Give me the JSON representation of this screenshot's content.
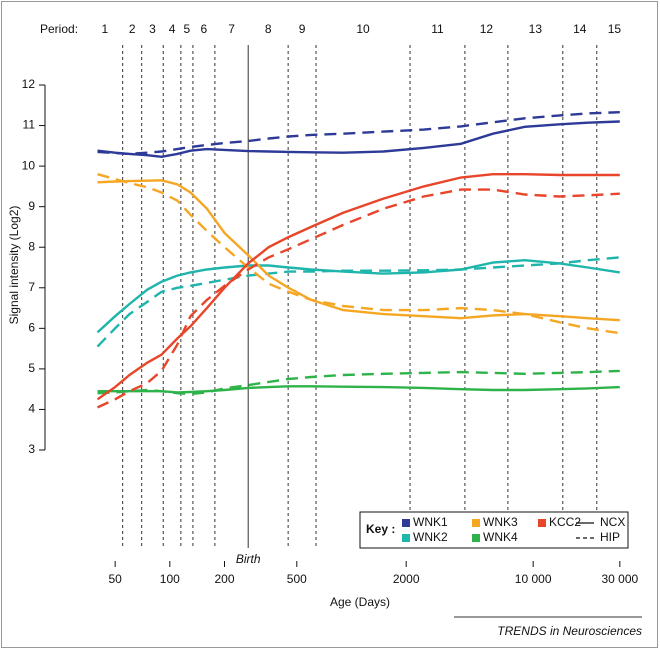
{
  "chart_data": {
    "type": "line",
    "y_label": "Signal intensity (Log2)",
    "x_label": "Age (Days)",
    "period_label": "Period:",
    "periods": [
      1,
      2,
      3,
      4,
      5,
      6,
      7,
      8,
      9,
      10,
      11,
      12,
      13,
      14,
      15
    ],
    "period_boundaries": [
      55,
      70,
      92,
      115,
      134,
      177,
      270,
      448,
      638,
      2100,
      4210,
      7260,
      14560,
      22400
    ],
    "birth": {
      "label": "Birth",
      "age": 270
    },
    "log_x": true,
    "xlim": [
      35,
      35000
    ],
    "xticks": [
      50,
      100,
      200,
      500,
      2000,
      {
        "value": 10000,
        "label": "10 000"
      },
      {
        "value": 30000,
        "label": "30 000"
      }
    ],
    "ylim": [
      3,
      12
    ],
    "yticks": [
      3,
      4,
      5,
      6,
      7,
      8,
      9,
      10,
      11,
      12
    ],
    "legend_title": "Key :",
    "line_styles": [
      {
        "name": "NCX",
        "dash": "solid"
      },
      {
        "name": "HIP",
        "dash": "dashed"
      }
    ],
    "x": [
      40,
      50,
      60,
      75,
      90,
      110,
      130,
      160,
      200,
      270,
      350,
      450,
      600,
      900,
      1500,
      2500,
      4000,
      6000,
      9000,
      14000,
      20000,
      30000
    ],
    "series": [
      {
        "name": "WNK1",
        "color": "#2e3a97",
        "values": [
          10.38,
          10.33,
          10.3,
          10.27,
          10.23,
          10.3,
          10.38,
          10.42,
          10.4,
          10.37,
          10.36,
          10.35,
          10.34,
          10.33,
          10.36,
          10.45,
          10.55,
          10.8,
          10.97,
          11.03,
          11.07,
          11.1
        ],
        "hip_values": [
          10.35,
          10.32,
          10.3,
          10.33,
          10.36,
          10.42,
          10.47,
          10.52,
          10.57,
          10.62,
          10.68,
          10.73,
          10.77,
          10.8,
          10.85,
          10.9,
          10.98,
          11.08,
          11.18,
          11.25,
          11.3,
          11.33
        ]
      },
      {
        "name": "WNK2",
        "color": "#1fb5ac",
        "values": [
          5.9,
          6.3,
          6.6,
          6.95,
          7.15,
          7.3,
          7.38,
          7.45,
          7.5,
          7.55,
          7.55,
          7.5,
          7.45,
          7.4,
          7.35,
          7.38,
          7.45,
          7.62,
          7.68,
          7.6,
          7.5,
          7.38
        ],
        "hip_values": [
          5.55,
          6.0,
          6.35,
          6.65,
          6.9,
          7.0,
          7.05,
          7.12,
          7.2,
          7.3,
          7.35,
          7.4,
          7.4,
          7.42,
          7.42,
          7.43,
          7.45,
          7.5,
          7.55,
          7.6,
          7.68,
          7.75
        ]
      },
      {
        "name": "WNK3",
        "color": "#f5a623",
        "values": [
          9.6,
          9.62,
          9.63,
          9.64,
          9.65,
          9.55,
          9.35,
          8.95,
          8.35,
          7.8,
          7.3,
          7.0,
          6.7,
          6.45,
          6.35,
          6.3,
          6.25,
          6.32,
          6.35,
          6.3,
          6.25,
          6.2
        ],
        "hip_values": [
          9.8,
          9.68,
          9.58,
          9.48,
          9.35,
          9.15,
          8.8,
          8.4,
          8.0,
          7.5,
          7.1,
          6.9,
          6.7,
          6.55,
          6.45,
          6.45,
          6.5,
          6.45,
          6.35,
          6.15,
          6.0,
          5.88
        ]
      },
      {
        "name": "WNK4",
        "color": "#2db34a",
        "values": [
          4.45,
          4.45,
          4.45,
          4.45,
          4.45,
          4.42,
          4.43,
          4.45,
          4.48,
          4.53,
          4.55,
          4.57,
          4.57,
          4.56,
          4.55,
          4.53,
          4.5,
          4.48,
          4.48,
          4.5,
          4.52,
          4.55
        ],
        "hip_values": [
          4.4,
          4.42,
          4.45,
          4.48,
          4.45,
          4.4,
          4.38,
          4.42,
          4.52,
          4.6,
          4.68,
          4.75,
          4.8,
          4.85,
          4.88,
          4.9,
          4.92,
          4.9,
          4.88,
          4.9,
          4.92,
          4.95
        ]
      },
      {
        "name": "KCC2",
        "color": "#e8452a",
        "values": [
          4.25,
          4.55,
          4.85,
          5.15,
          5.35,
          5.75,
          6.05,
          6.5,
          7.0,
          7.6,
          8.0,
          8.25,
          8.5,
          8.85,
          9.2,
          9.5,
          9.72,
          9.8,
          9.8,
          9.78,
          9.78,
          9.78
        ],
        "hip_values": [
          4.05,
          4.25,
          4.45,
          4.65,
          4.95,
          5.6,
          6.3,
          6.7,
          7.05,
          7.45,
          7.75,
          7.95,
          8.2,
          8.55,
          8.95,
          9.25,
          9.42,
          9.42,
          9.3,
          9.25,
          9.28,
          9.32
        ]
      }
    ]
  },
  "footer": "TRENDS in Neurosciences"
}
